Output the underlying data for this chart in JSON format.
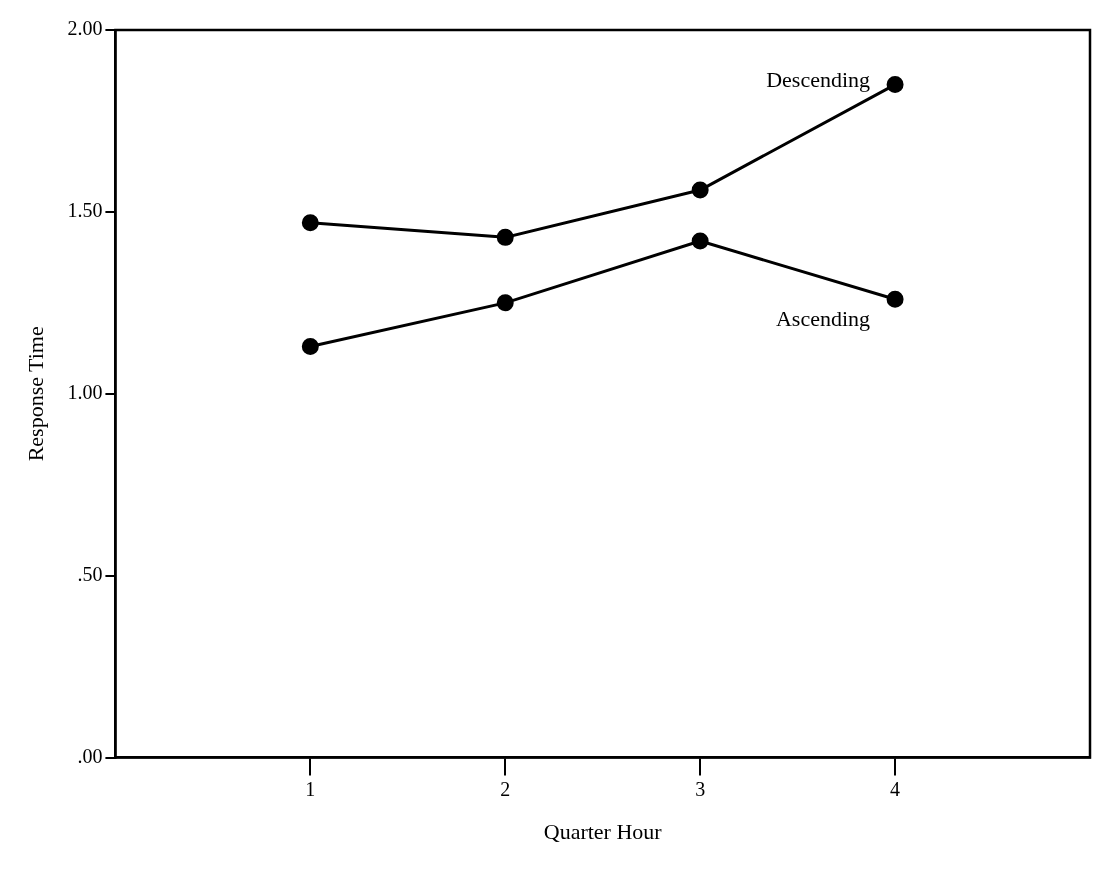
{
  "chart_data": {
    "type": "line",
    "xlabel": "Quarter Hour",
    "ylabel": "Response Time",
    "x": [
      1,
      2,
      3,
      4
    ],
    "series": [
      {
        "name": "Descending",
        "color": "#000000",
        "values": [
          1.47,
          1.43,
          1.56,
          1.85
        ]
      },
      {
        "name": "Ascending",
        "color": "#000000",
        "values": [
          1.13,
          1.25,
          1.42,
          1.26
        ]
      }
    ],
    "xlim": [
      0,
      5
    ],
    "xticks": [
      1,
      2,
      3,
      4
    ],
    "ylim": [
      0,
      2
    ],
    "yticks": [
      {
        "value": 0,
        "label": ".00"
      },
      {
        "value": 0.5,
        "label": ".50"
      },
      {
        "value": 1,
        "label": "1.00"
      },
      {
        "value": 1.5,
        "label": "1.50"
      },
      {
        "value": 2,
        "label": "2.00"
      }
    ],
    "legend": false,
    "marker": "circle",
    "line_style": "solid"
  }
}
